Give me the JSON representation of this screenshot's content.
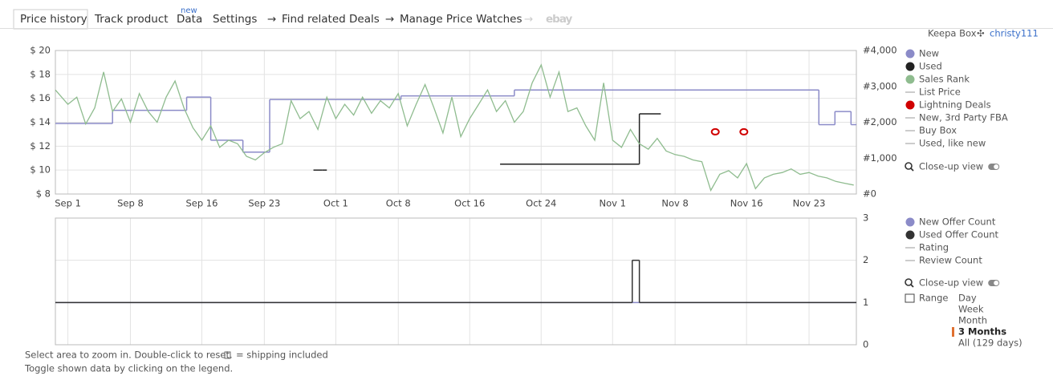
{
  "tabs": [
    "Price history",
    "Track product",
    "Data",
    "Settings",
    "Find related Deals",
    "Manage Price Watches",
    "ebay"
  ],
  "badge": "new",
  "account": {
    "box": "Keepa Box",
    "user": "christy111"
  },
  "chart_data": [
    {
      "type": "line",
      "xlim": [
        -1.4,
        88.3
      ],
      "xticks": [
        {
          "value": 0,
          "label": "Sep 1"
        },
        {
          "value": 7,
          "label": "Sep 8"
        },
        {
          "value": 15,
          "label": "Sep 16"
        },
        {
          "value": 22,
          "label": "Sep 23"
        },
        {
          "value": 30,
          "label": "Oct 1"
        },
        {
          "value": 37,
          "label": "Oct 8"
        },
        {
          "value": 45,
          "label": "Oct 16"
        },
        {
          "value": 53,
          "label": "Oct 24"
        },
        {
          "value": 61,
          "label": "Nov 1"
        },
        {
          "value": 68,
          "label": "Nov 8"
        },
        {
          "value": 76,
          "label": "Nov 16"
        },
        {
          "value": 83,
          "label": "Nov 23"
        }
      ],
      "ylim": [
        8,
        20
      ],
      "yticks": [
        {
          "value": 8,
          "label": "$ 8"
        },
        {
          "value": 10,
          "label": "$ 10"
        },
        {
          "value": 12,
          "label": "$ 12"
        },
        {
          "value": 14,
          "label": "$ 14"
        },
        {
          "value": 16,
          "label": "$ 16"
        },
        {
          "value": 18,
          "label": "$ 18"
        },
        {
          "value": 20,
          "label": "$ 20"
        }
      ],
      "y2lim": [
        0,
        4000
      ],
      "y2ticks": [
        {
          "value": 0,
          "label": "#0"
        },
        {
          "value": 1000,
          "label": "#1,000"
        },
        {
          "value": 2000,
          "label": "#2,000"
        },
        {
          "value": 3000,
          "label": "#3,000"
        },
        {
          "value": 4000,
          "label": "#4,000"
        }
      ],
      "grid": true,
      "series": [
        {
          "name": "New",
          "color": "#8b8bc8",
          "mode": "step",
          "x": [
            -1.4,
            5,
            13.3,
            16,
            19.6,
            22.6,
            37.3,
            50,
            84.1,
            85.9,
            87.7,
            88.3
          ],
          "values": [
            13.9,
            15,
            16.1,
            12.5,
            11.5,
            15.9,
            16.2,
            16.7,
            13.8,
            14.9,
            13.8,
            13.8
          ]
        },
        {
          "name": "Used",
          "color": "#222222",
          "mode": "step",
          "x": [
            27.5,
            28.5,
            29,
            48.4,
            64,
            66.4
          ],
          "values": [
            10,
            10,
            null,
            10.5,
            14.7,
            14.7
          ]
        },
        {
          "name": "Sales Rank",
          "color": "#8fbc8f",
          "mode": "line",
          "axis": "y2",
          "x": [
            -1.4,
            0,
            1,
            2,
            3,
            4,
            5,
            6,
            7,
            8,
            9,
            10,
            11,
            12,
            13,
            14,
            15,
            16,
            17,
            18,
            19,
            20,
            21,
            22,
            23,
            24,
            25,
            26,
            27,
            28,
            29,
            30,
            31,
            32,
            33,
            34,
            35,
            36,
            37,
            38,
            39,
            40,
            41,
            42,
            43,
            44,
            45,
            46,
            47,
            48,
            49,
            50,
            51,
            52,
            53,
            54,
            55,
            56,
            57,
            58,
            59,
            60,
            61,
            62,
            63,
            64,
            65,
            66,
            67,
            68,
            69,
            70,
            71,
            72,
            73,
            74,
            75,
            76,
            77,
            78,
            79,
            80,
            81,
            82,
            83,
            84,
            85,
            86,
            87,
            88
          ],
          "values": [
            2900,
            2500,
            2700,
            1950,
            2400,
            3400,
            2300,
            2650,
            2000,
            2800,
            2300,
            2000,
            2700,
            3150,
            2400,
            1850,
            1500,
            1900,
            1300,
            1500,
            1400,
            1050,
            950,
            1150,
            1300,
            1400,
            2600,
            2100,
            2300,
            1800,
            2700,
            2100,
            2500,
            2200,
            2700,
            2250,
            2600,
            2400,
            2800,
            1900,
            2500,
            3050,
            2400,
            1700,
            2700,
            1600,
            2100,
            2500,
            2900,
            2300,
            2600,
            2000,
            2300,
            3100,
            3600,
            2700,
            3400,
            2300,
            2400,
            1900,
            1500,
            3100,
            1500,
            1300,
            1800,
            1400,
            1250,
            1550,
            1200,
            1100,
            1050,
            950,
            900,
            100,
            550,
            650,
            450,
            850,
            150,
            450,
            550,
            600,
            700,
            550,
            600,
            500,
            450,
            350,
            300,
            250
          ]
        },
        {
          "name": "Lightning Deals",
          "color": "#d00000",
          "mode": "points",
          "x": [
            72.5,
            75.7
          ],
          "values": [
            13.2,
            13.2
          ]
        }
      ],
      "legend_extra": [
        {
          "name": "List Price",
          "color": "#bbbbbb"
        },
        {
          "name": "New, 3rd Party FBA",
          "color": "#bbbbbb"
        },
        {
          "name": "Buy Box",
          "color": "#bbbbbb"
        },
        {
          "name": "Used, like new",
          "color": "#bbbbbb"
        }
      ],
      "closeup": "Close-up view"
    },
    {
      "type": "line",
      "xlim": [
        -1.4,
        88.3
      ],
      "xticks": [
        0,
        7,
        15,
        22,
        30,
        37,
        45,
        53,
        61,
        68,
        76,
        83
      ],
      "ylim": [
        0,
        3
      ],
      "yticks": [
        0,
        1,
        2,
        3
      ],
      "grid": true,
      "series": [
        {
          "name": "New Offer Count",
          "color": "#8b8bc8",
          "mode": "step",
          "x": [
            -1.4,
            88.3
          ],
          "values": [
            1,
            1
          ]
        },
        {
          "name": "Used Offer Count",
          "color": "#333333",
          "mode": "step",
          "x": [
            -1.4,
            63.2,
            64,
            88.3
          ],
          "values": [
            1,
            2,
            1,
            1
          ]
        }
      ],
      "legend_extra": [
        {
          "name": "Rating",
          "color": "#bbbbbb"
        },
        {
          "name": "Review Count",
          "color": "#bbbbbb"
        }
      ],
      "closeup": "Close-up view"
    }
  ],
  "range": {
    "label": "Range",
    "options": [
      "Day",
      "Week",
      "Month",
      "3 Months",
      "All (129 days)"
    ],
    "selected": 3
  },
  "footer": [
    "Select area to zoom in. Double-click to reset.",
    "= shipping included",
    "Toggle shown data by clicking on the legend."
  ]
}
